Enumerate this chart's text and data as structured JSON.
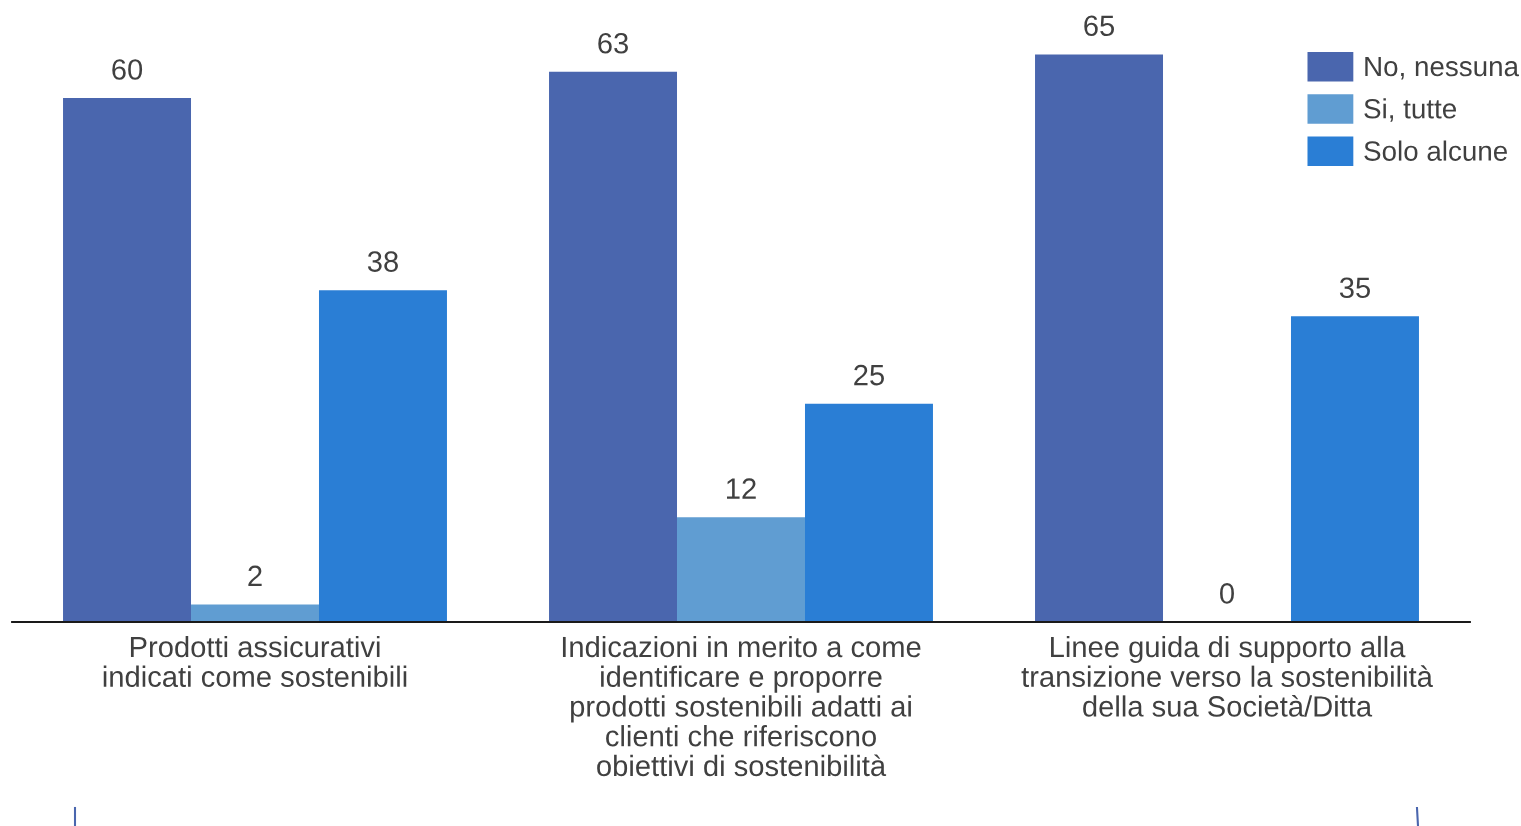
{
  "chart_data": {
    "type": "bar",
    "categories": [
      "Prodotti assicurativi\nindicati come sostenibili",
      "Indicazioni in merito a come\nidentificare e proporre\nprodotti sostenibili adatti ai\nclienti che riferiscono\nobiettivi di sostenibilità",
      "Linee guida di supporto alla\ntransizione verso la sostenibilità\ndella sua Società/Ditta"
    ],
    "series": [
      {
        "name": "No, nessuna",
        "color": "#4a66ae",
        "values": [
          60,
          63,
          65
        ]
      },
      {
        "name": "Si, tutte",
        "color": "#609dd2",
        "values": [
          2,
          12,
          0
        ]
      },
      {
        "name": "Solo alcune",
        "color": "#2a7ed5",
        "values": [
          38,
          25,
          35
        ]
      }
    ],
    "data_labels": true,
    "legend": "top right"
  }
}
